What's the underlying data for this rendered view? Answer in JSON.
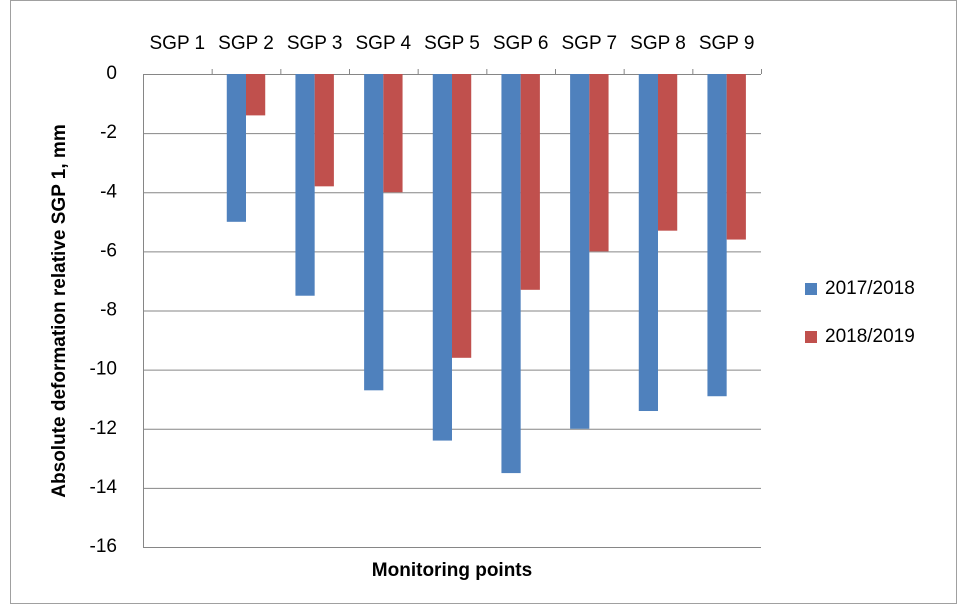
{
  "chart_data": {
    "type": "bar",
    "xlabel": "Monitoring points",
    "ylabel": "Absolute deformation  relative SGP 1, mm",
    "categories": [
      "SGP 1",
      "SGP 2",
      "SGP 3",
      "SGP 4",
      "SGP 5",
      "SGP 6",
      "SGP 7",
      "SGP 8",
      "SGP 9"
    ],
    "series": [
      {
        "name": "2017/2018",
        "color": "#4f81bd",
        "values": [
          0,
          -5.0,
          -7.5,
          -10.7,
          -12.4,
          -13.5,
          -12.0,
          -11.4,
          -10.9
        ]
      },
      {
        "name": "2018/2019",
        "color": "#c0504d",
        "values": [
          0,
          -1.4,
          -3.8,
          -4.0,
          -9.6,
          -7.3,
          -6.0,
          -5.3,
          -5.6
        ]
      }
    ],
    "ylim": [
      -16,
      0
    ],
    "yticks": [
      0,
      -2,
      -4,
      -6,
      -8,
      -10,
      -12,
      -14,
      -16
    ],
    "grid": true,
    "legend": "right"
  }
}
